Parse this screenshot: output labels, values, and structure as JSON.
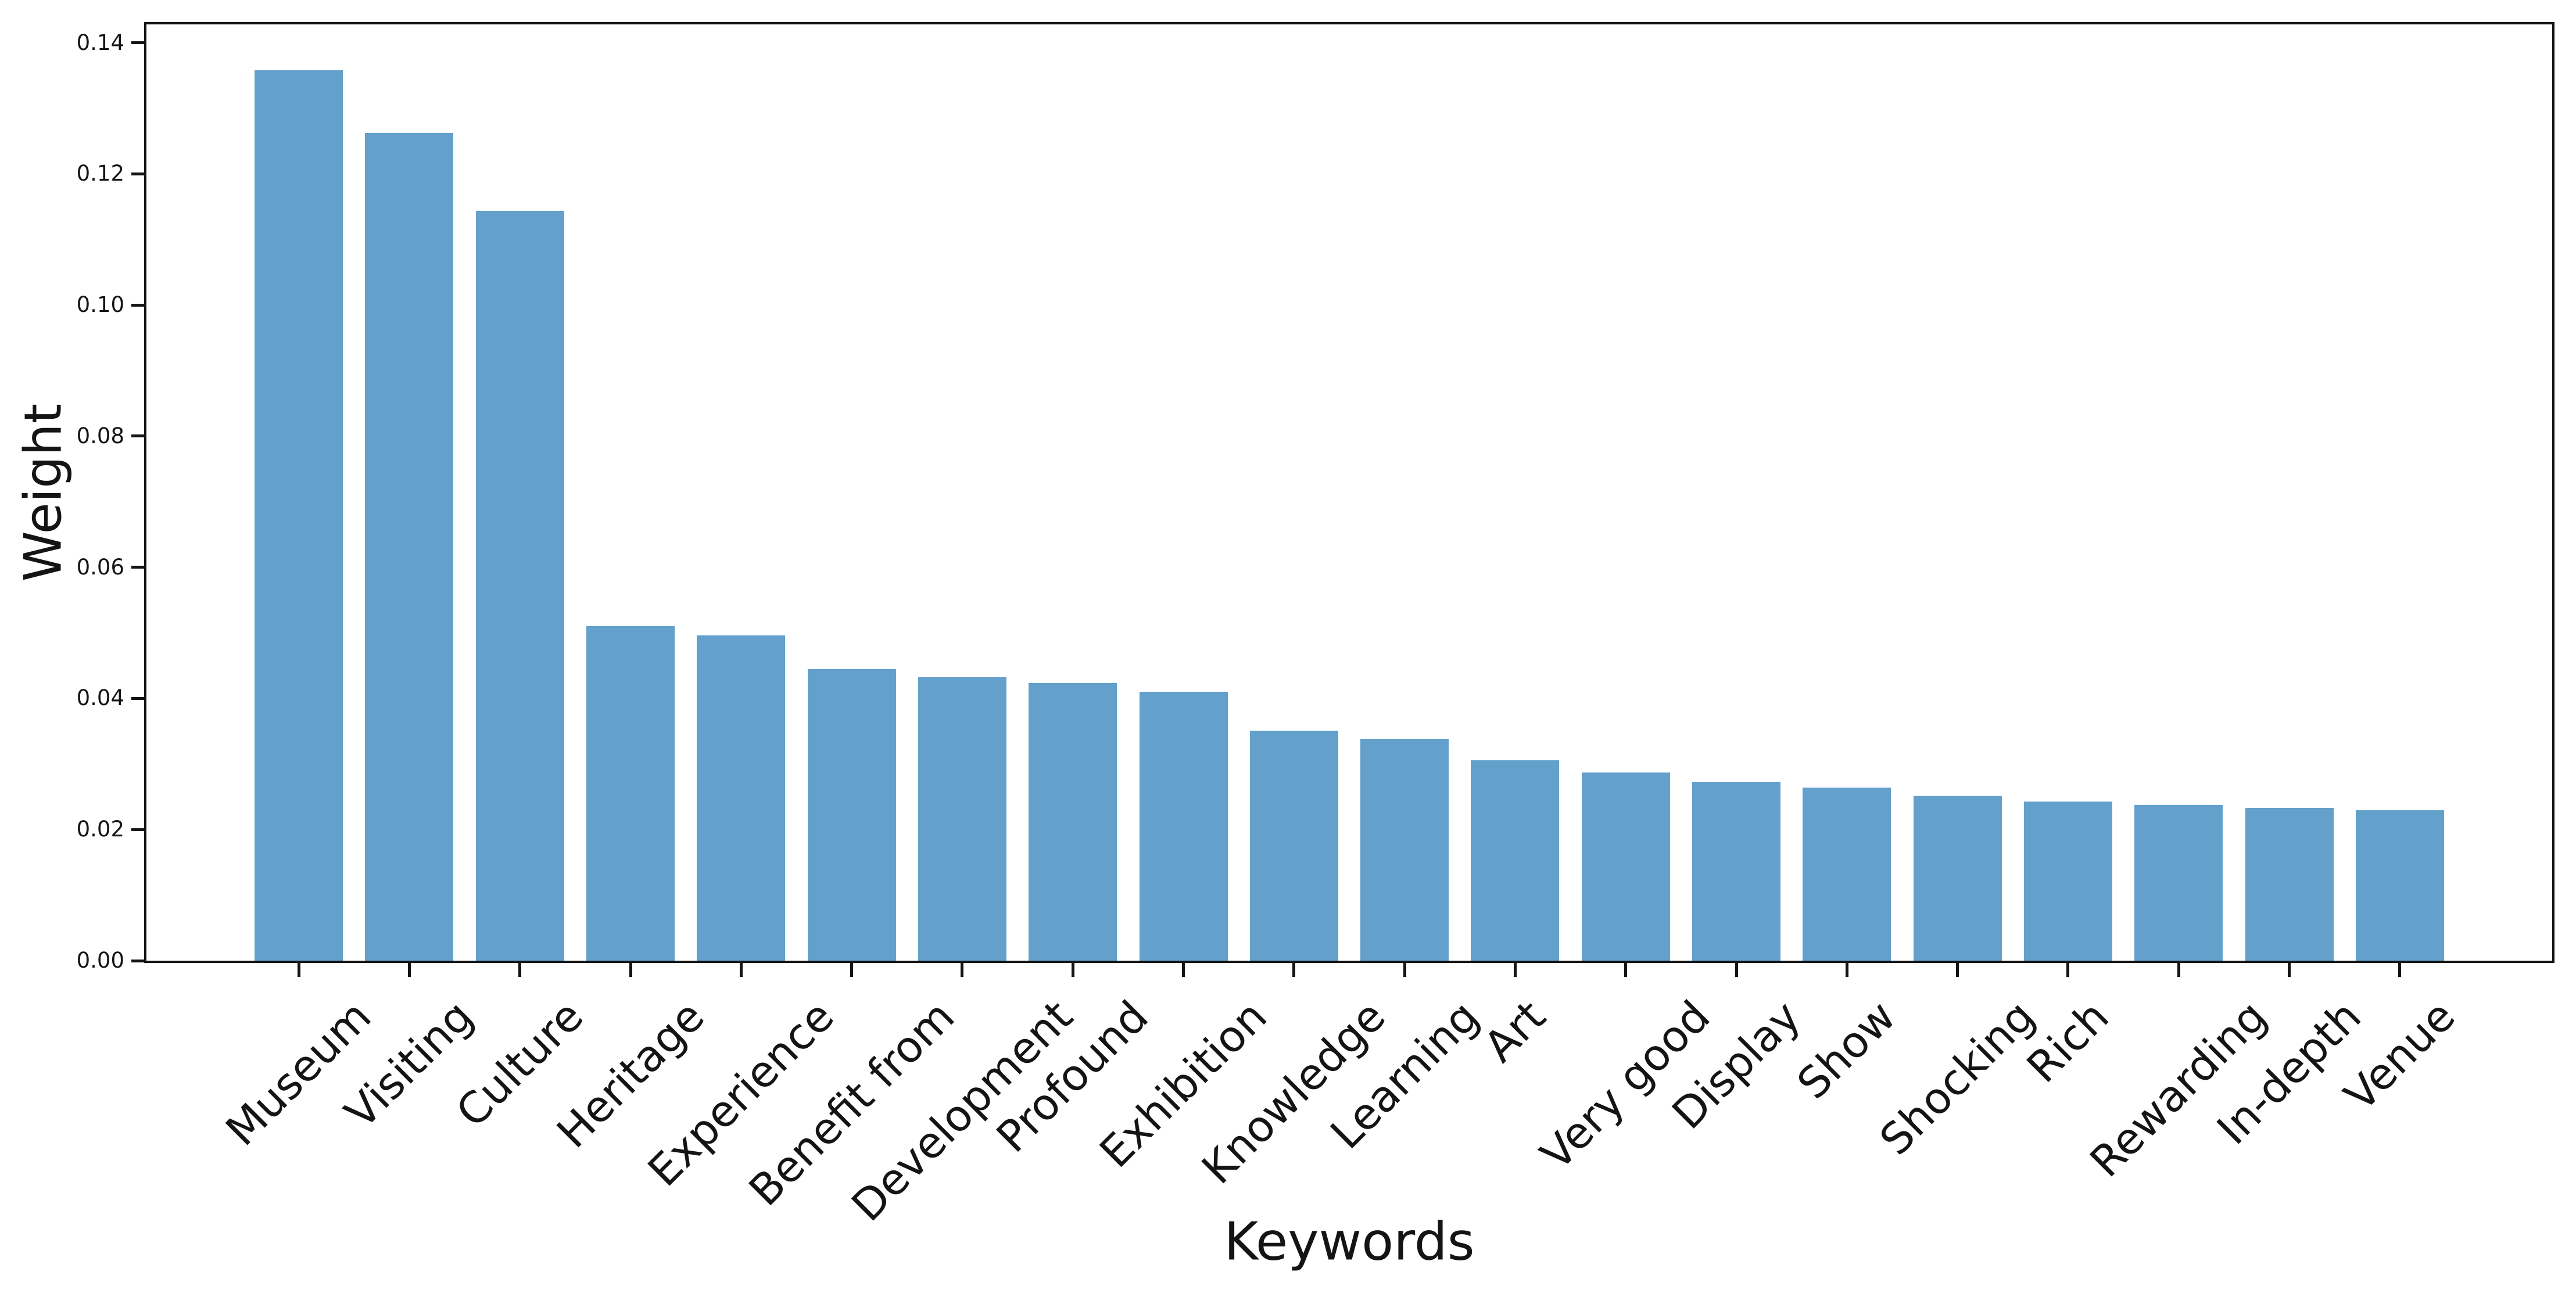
{
  "chart_data": {
    "type": "bar",
    "title": "",
    "xlabel": "Keywords",
    "ylabel": "Weight",
    "categories": [
      "Museum",
      "Visiting",
      "Culture",
      "Heritage",
      "Experience",
      "Benefit from",
      "Development",
      "Profound",
      "Exhibition",
      "Knowledge",
      "Learning",
      "Art",
      "Very good",
      "Display",
      "Show",
      "Shocking",
      "Rich",
      "Rewarding",
      "In-depth",
      "Venue"
    ],
    "values": [
      0.1358,
      0.1262,
      0.1144,
      0.051,
      0.0496,
      0.0445,
      0.0432,
      0.0423,
      0.041,
      0.0351,
      0.0338,
      0.0306,
      0.0287,
      0.0273,
      0.0264,
      0.0252,
      0.0243,
      0.0237,
      0.0233,
      0.0229
    ],
    "ylim": [
      0,
      0.1428
    ],
    "yticks": [
      0.0,
      0.02,
      0.04,
      0.06,
      0.08,
      0.1,
      0.12,
      0.14
    ],
    "x_tick_rotation_deg": 45,
    "grid": false,
    "legend_position": "none",
    "bar_color": "#63a0cc",
    "axis_color": "#141414",
    "background_color": "#ffffff"
  }
}
